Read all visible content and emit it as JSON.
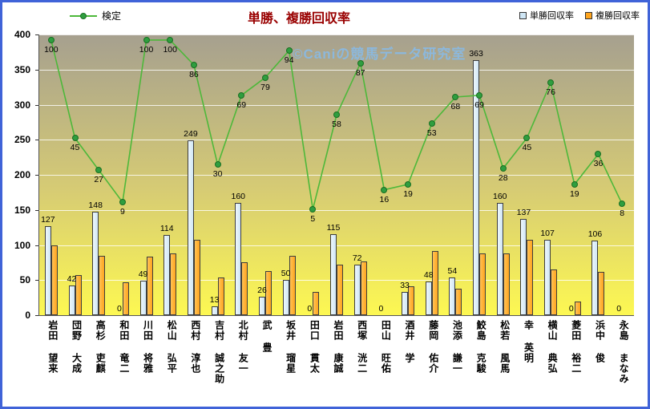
{
  "title": "単勝、複勝回収率",
  "watermark": "©Caniの競馬データ研究室",
  "legend": {
    "kentei": "検定",
    "tansho": "単勝回収率",
    "fukusho": "複勝回収率"
  },
  "colors": {
    "frame_border": "#4063d8",
    "title": "#990000",
    "tansho_bar": "#cfe6f5",
    "fukusho_bar": "#ffa51e",
    "kentei_line": "#4db83a",
    "kentei_marker": "#2f9e3f",
    "watermark": "#8ab8e0",
    "plot_top": "#a6a08f",
    "plot_mid": "#d6cb74",
    "plot_bottom": "#fdf852"
  },
  "chart_data": {
    "type": "bar",
    "title": "単勝、複勝回収率",
    "categories": [
      "岩田 望来",
      "団野 大成",
      "高杉 吏麒",
      "和田 竜二",
      "川田 将雅",
      "松山 弘平",
      "西村 淳也",
      "吉村 誠之助",
      "北村 友一",
      "武 豊",
      "坂井 瑠星",
      "田口 貫太",
      "岩田 康誠",
      "西塚 洸二",
      "田山 旺佑",
      "酒井 学",
      "藤岡 佑介",
      "池添 謙一",
      "鮫島 克駿",
      "松若 風馬",
      "幸 英明",
      "横山 典弘",
      "菱田 裕二",
      "浜中 俊",
      "永島 まなみ"
    ],
    "series": [
      {
        "name": "単勝回収率",
        "type": "bar",
        "labels_shown": true,
        "values": [
          127,
          42,
          148,
          0,
          49,
          114,
          249,
          13,
          160,
          26,
          50,
          0,
          115,
          72,
          0,
          33,
          48,
          54,
          363,
          160,
          137,
          107,
          0,
          106,
          0
        ]
      },
      {
        "name": "複勝回収率",
        "type": "bar",
        "labels_shown": false,
        "values": [
          100,
          57,
          85,
          47,
          83,
          88,
          108,
          54,
          75,
          63,
          85,
          33,
          72,
          77,
          0,
          41,
          92,
          38,
          88,
          88,
          108,
          65,
          20,
          62,
          0
        ]
      },
      {
        "name": "検定",
        "type": "line",
        "labels_shown": true,
        "values": [
          100,
          45,
          27,
          9,
          100,
          100,
          86,
          30,
          69,
          79,
          94,
          5,
          58,
          87,
          16,
          19,
          53,
          68,
          69,
          28,
          45,
          76,
          19,
          36,
          8
        ]
      }
    ],
    "y_axis": {
      "min": 0,
      "max": 400,
      "step": 50,
      "ticks": [
        "400",
        "350",
        "300",
        "250",
        "200",
        "150",
        "100",
        "50",
        "0"
      ]
    },
    "secondary_axis": {
      "min": -54.4,
      "max": 103.1
    },
    "legend_position": "top",
    "grid": true
  }
}
